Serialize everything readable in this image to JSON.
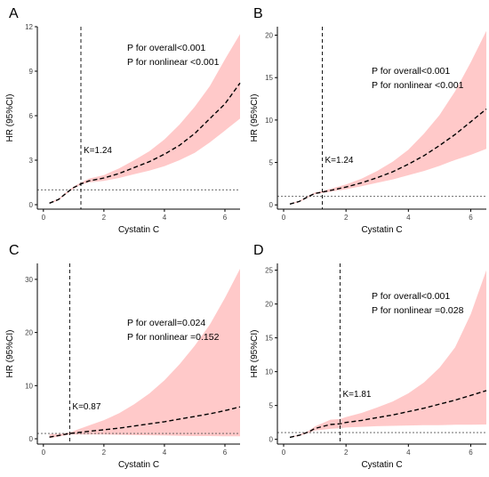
{
  "figure": {
    "panels": [
      {
        "letter": "A",
        "xlabel": "Cystatin C",
        "ylabel": "HR (95%CI)",
        "annotations": [
          "P for overall<0.001",
          "P for nonlinear <0.001"
        ],
        "knot_label": "K=1.24"
      },
      {
        "letter": "B",
        "xlabel": "Cystatin C",
        "ylabel": "HR (95%CI)",
        "annotations": [
          "P for overall<0.001",
          "P for nonlinear <0.001"
        ],
        "knot_label": "K=1.24"
      },
      {
        "letter": "C",
        "xlabel": "Cystatin C",
        "ylabel": "HR (95%CI)",
        "annotations": [
          "P for overall=0.024",
          "P for nonlinear =0.152"
        ],
        "knot_label": "K=0.87"
      },
      {
        "letter": "D",
        "xlabel": "Cystatin C",
        "ylabel": "HR (95%CI)",
        "annotations": [
          "P for overall<0.001",
          "P for nonlinear =0.028"
        ],
        "knot_label": "K=1.81"
      }
    ]
  },
  "colors": {
    "ci_fill": "#ffc9c9",
    "curve": "#000000",
    "axis": "#000000",
    "reference_line": "#555555"
  },
  "chart_data": [
    {
      "type": "line",
      "panel": "A",
      "title": "",
      "xlabel": "Cystatin C",
      "ylabel": "HR (95%CI)",
      "xlim": [
        -0.2,
        6.5
      ],
      "ylim": [
        -0.3,
        12
      ],
      "xticks": [
        0,
        2,
        4,
        6
      ],
      "yticks": [
        0,
        3,
        6,
        9,
        12
      ],
      "reference_hr": 1,
      "knot": 1.24,
      "x": [
        0.2,
        0.5,
        0.8,
        1.0,
        1.24,
        1.5,
        2.0,
        2.5,
        3.0,
        3.5,
        4.0,
        4.5,
        5.0,
        5.5,
        6.0,
        6.5
      ],
      "hr": [
        0.1,
        0.35,
        0.85,
        1.15,
        1.4,
        1.6,
        1.8,
        2.1,
        2.5,
        2.9,
        3.4,
        4.0,
        4.8,
        5.8,
        6.8,
        8.2
      ],
      "lower": [
        0.05,
        0.3,
        0.78,
        1.08,
        1.35,
        1.5,
        1.6,
        1.8,
        2.05,
        2.3,
        2.6,
        3.0,
        3.5,
        4.2,
        5.0,
        5.8
      ],
      "upper": [
        0.15,
        0.4,
        0.92,
        1.22,
        1.5,
        1.75,
        2.0,
        2.45,
        3.0,
        3.6,
        4.4,
        5.4,
        6.6,
        8.0,
        9.8,
        11.5
      ]
    },
    {
      "type": "line",
      "panel": "B",
      "title": "",
      "xlabel": "Cystatin C",
      "ylabel": "HR (95%CI)",
      "xlim": [
        -0.2,
        6.5
      ],
      "ylim": [
        -0.5,
        21
      ],
      "xticks": [
        0,
        2,
        4,
        6
      ],
      "yticks": [
        0,
        5,
        10,
        15,
        20
      ],
      "reference_hr": 1,
      "knot": 1.24,
      "x": [
        0.2,
        0.5,
        0.8,
        1.0,
        1.24,
        1.5,
        2.0,
        2.5,
        3.0,
        3.5,
        4.0,
        4.5,
        5.0,
        5.5,
        6.0,
        6.5
      ],
      "hr": [
        0.1,
        0.4,
        1.0,
        1.35,
        1.5,
        1.7,
        2.1,
        2.6,
        3.2,
        3.9,
        4.8,
        5.8,
        7.0,
        8.3,
        9.8,
        11.3
      ],
      "lower": [
        0.05,
        0.33,
        0.9,
        1.25,
        1.4,
        1.55,
        1.85,
        2.2,
        2.6,
        3.0,
        3.5,
        4.0,
        4.6,
        5.3,
        5.9,
        6.6
      ],
      "upper": [
        0.15,
        0.47,
        1.1,
        1.45,
        1.65,
        1.9,
        2.4,
        3.1,
        4.0,
        5.1,
        6.5,
        8.4,
        10.6,
        13.4,
        16.8,
        20.5
      ]
    },
    {
      "type": "line",
      "panel": "C",
      "title": "",
      "xlabel": "Cystatin C",
      "ylabel": "HR (95%CI)",
      "xlim": [
        -0.2,
        6.5
      ],
      "ylim": [
        -1,
        33
      ],
      "xticks": [
        0,
        2,
        4,
        6
      ],
      "yticks": [
        0,
        10,
        20,
        30
      ],
      "reference_hr": 1,
      "knot": 0.87,
      "x": [
        0.2,
        0.5,
        0.87,
        1.5,
        2.0,
        2.5,
        3.0,
        3.5,
        4.0,
        4.5,
        5.0,
        5.5,
        6.0,
        6.5
      ],
      "hr": [
        0.3,
        0.6,
        1.0,
        1.4,
        1.7,
        2.0,
        2.4,
        2.8,
        3.2,
        3.7,
        4.2,
        4.7,
        5.3,
        6.0
      ],
      "lower": [
        0.1,
        0.4,
        0.8,
        0.8,
        0.8,
        0.75,
        0.7,
        0.65,
        0.6,
        0.55,
        0.5,
        0.5,
        0.45,
        0.45
      ],
      "upper": [
        0.9,
        0.9,
        1.2,
        2.5,
        3.5,
        4.8,
        6.5,
        8.5,
        11.0,
        14.0,
        17.5,
        21.5,
        26.5,
        32.0
      ]
    },
    {
      "type": "line",
      "panel": "D",
      "title": "",
      "xlabel": "Cystatin C",
      "ylabel": "HR (95%CI)",
      "xlim": [
        -0.2,
        6.5
      ],
      "ylim": [
        -0.7,
        26
      ],
      "xticks": [
        0,
        2,
        4,
        6
      ],
      "yticks": [
        0,
        5,
        10,
        15,
        20,
        25
      ],
      "reference_hr": 1,
      "knot": 1.81,
      "x": [
        0.2,
        0.5,
        0.8,
        1.0,
        1.5,
        1.81,
        2.0,
        2.5,
        3.0,
        3.5,
        4.0,
        4.5,
        5.0,
        5.5,
        6.0,
        6.5
      ],
      "hr": [
        0.3,
        0.6,
        1.1,
        1.6,
        2.2,
        2.3,
        2.5,
        2.8,
        3.2,
        3.6,
        4.1,
        4.6,
        5.2,
        5.8,
        6.5,
        7.2
      ],
      "lower": [
        0.25,
        0.5,
        0.95,
        1.3,
        1.55,
        1.65,
        1.75,
        1.85,
        1.95,
        2.0,
        2.05,
        2.1,
        2.1,
        2.15,
        2.15,
        2.2
      ],
      "upper": [
        0.35,
        0.7,
        1.25,
        1.9,
        2.9,
        3.0,
        3.3,
        3.9,
        4.7,
        5.6,
        6.8,
        8.4,
        10.6,
        13.6,
        18.5,
        25.0
      ]
    }
  ]
}
